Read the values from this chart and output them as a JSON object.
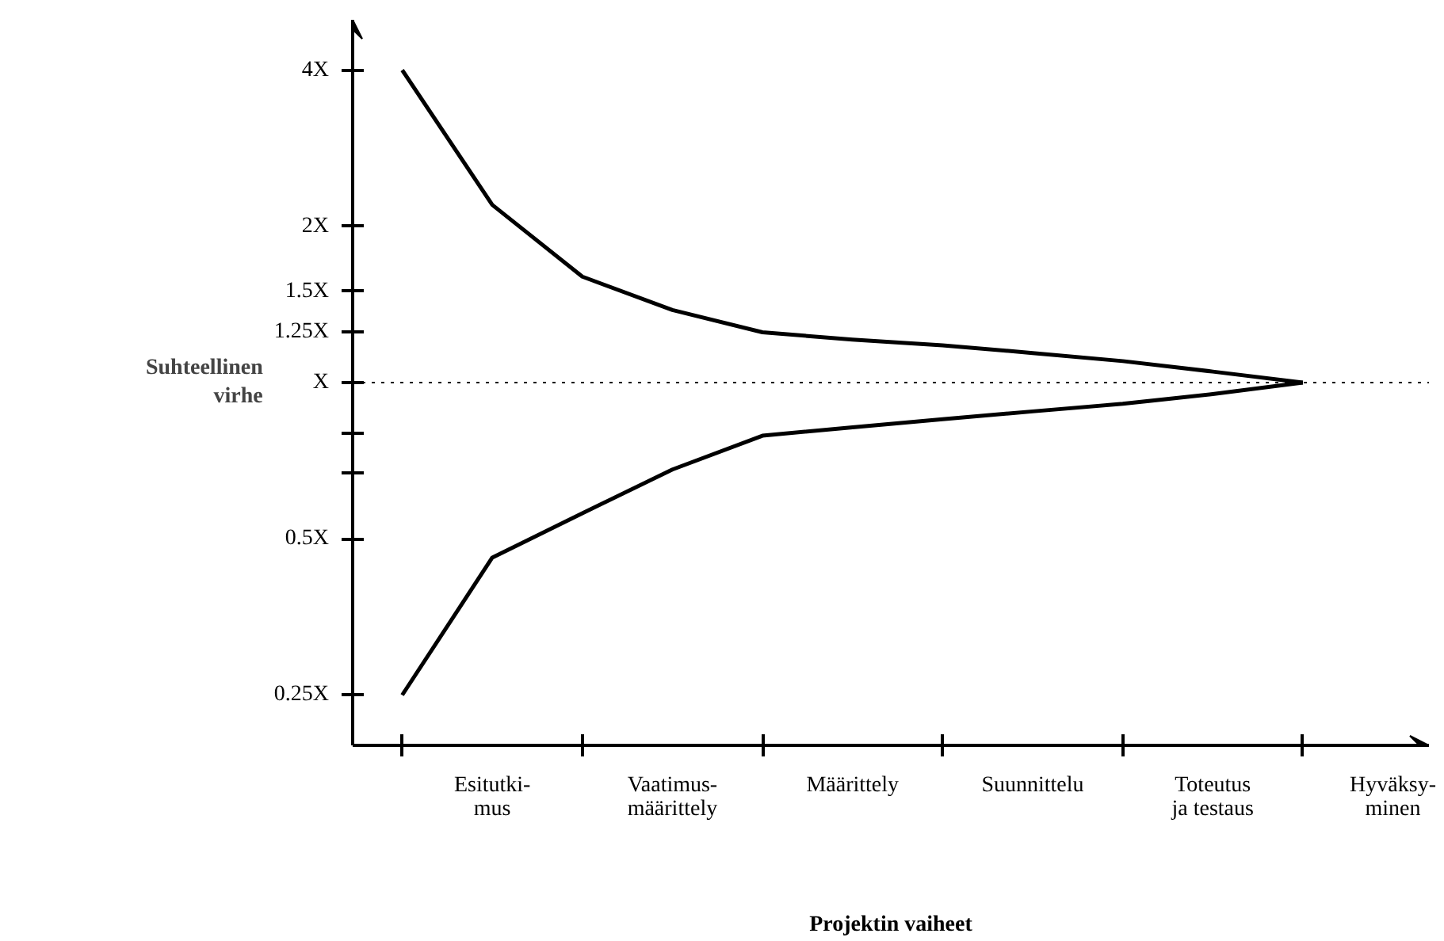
{
  "chart_data": {
    "type": "line",
    "xlabel": "Projektin vaiheet",
    "ylabel": "Suhteellinen virhe",
    "categories": [
      null,
      "Esitutki-\nmus",
      null,
      "Vaatimus-\nmäärittely",
      null,
      "Määrittely",
      null,
      "Suunnittelu",
      null,
      "Toteutus\nja testaus",
      null,
      "Hyväksy-\nminen"
    ],
    "log": true,
    "ylim": [
      0.2,
      5
    ],
    "yticks": [
      {
        "value": 0.25,
        "label": "0.25X"
      },
      {
        "value": 0.5,
        "label": "0.5X"
      },
      {
        "value": 0.67,
        "label": null
      },
      {
        "value": 0.8,
        "label": null
      },
      {
        "value": 1,
        "label": "X"
      },
      {
        "value": 1.25,
        "label": "1.25X"
      },
      {
        "value": 1.5,
        "label": "1.5X"
      },
      {
        "value": 2,
        "label": "2X"
      },
      {
        "value": 4,
        "label": "4X"
      }
    ],
    "series": [
      {
        "color": "#000000",
        "values": [
          4,
          2.2,
          1.6,
          1.38,
          1.25,
          1.21,
          1.18,
          1.14,
          1.1,
          1.05,
          1,
          null
        ]
      },
      {
        "color": "#000000",
        "values": [
          0.25,
          0.46,
          0.56,
          0.68,
          0.79,
          0.82,
          0.85,
          0.88,
          0.91,
          0.95,
          1,
          null
        ]
      }
    ],
    "ref_lines": [
      {
        "axis": "y",
        "value": 1,
        "line_style": "dotted"
      }
    ],
    "grid": false,
    "marker": "none",
    "line_style": "solid"
  }
}
